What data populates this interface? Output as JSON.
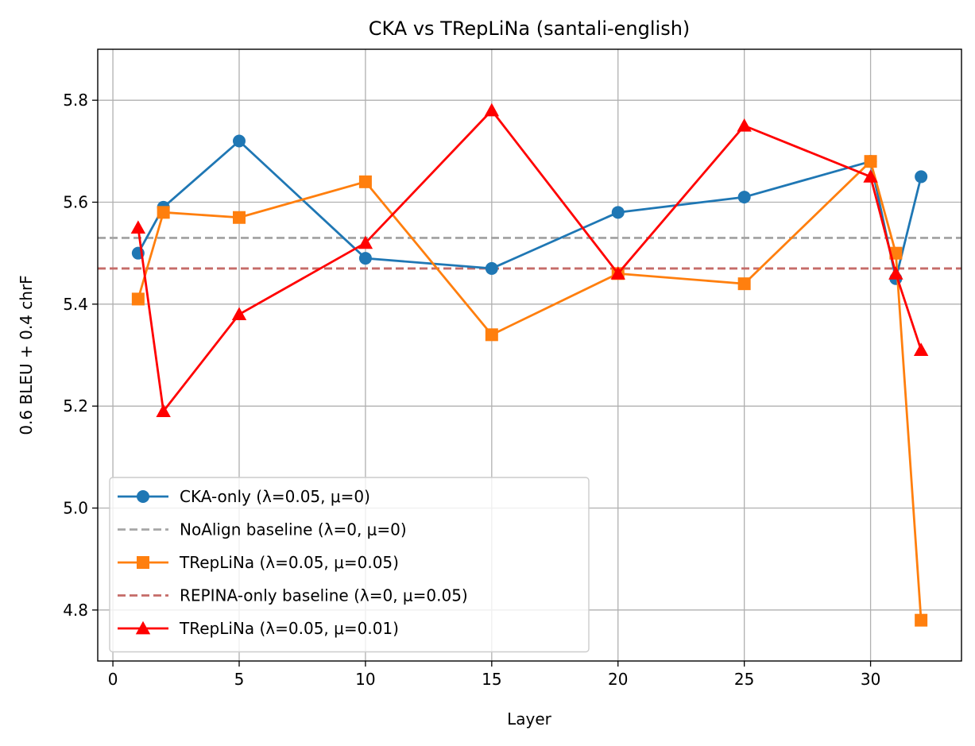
{
  "chart_data": {
    "type": "line",
    "title": "CKA vs TRepLiNa (santali-english)",
    "xlabel": "Layer",
    "ylabel": "0.6 BLEU + 0.4 chrF",
    "xlim": [
      -0.6,
      33.6
    ],
    "ylim": [
      4.7,
      5.9
    ],
    "xticks": [
      0,
      5,
      10,
      15,
      20,
      25,
      30
    ],
    "yticks": [
      4.8,
      5.0,
      5.2,
      5.4,
      5.6,
      5.8
    ],
    "xtick_labels": [
      "0",
      "5",
      "10",
      "15",
      "20",
      "25",
      "30"
    ],
    "ytick_labels": [
      "4.8",
      "5.0",
      "5.2",
      "5.4",
      "5.6",
      "5.8"
    ],
    "grid": true,
    "legend_position": "lower-left",
    "series": [
      {
        "name": "CKA-only (λ=0.05, μ=0)",
        "kind": "line",
        "color": "#1f77b4",
        "marker": "circle",
        "x": [
          1,
          2,
          5,
          10,
          15,
          20,
          25,
          30,
          31,
          32
        ],
        "values": [
          5.5,
          5.59,
          5.72,
          5.49,
          5.47,
          5.58,
          5.61,
          5.68,
          5.45,
          5.65
        ]
      },
      {
        "name": "NoAlign baseline (λ=0, μ=0)",
        "kind": "hline",
        "color": "#a6a6a6",
        "value": 5.53
      },
      {
        "name": "TRepLiNa (λ=0.05, μ=0.05)",
        "kind": "line",
        "color": "#ff7f0e",
        "marker": "square",
        "x": [
          1,
          2,
          5,
          10,
          15,
          20,
          25,
          30,
          31,
          32
        ],
        "values": [
          5.41,
          5.58,
          5.57,
          5.64,
          5.34,
          5.46,
          5.44,
          5.68,
          5.5,
          4.78
        ]
      },
      {
        "name": "REPINA-only baseline (λ=0, μ=0.05)",
        "kind": "hline",
        "color": "#c56b68",
        "value": 5.47
      },
      {
        "name": "TRepLiNa (λ=0.05, μ=0.01)",
        "kind": "line",
        "color": "#ff0000",
        "marker": "triangle",
        "x": [
          1,
          2,
          5,
          10,
          15,
          20,
          25,
          30,
          31,
          32
        ],
        "values": [
          5.55,
          5.19,
          5.38,
          5.52,
          5.78,
          5.46,
          5.75,
          5.65,
          5.46,
          5.31
        ]
      }
    ]
  }
}
